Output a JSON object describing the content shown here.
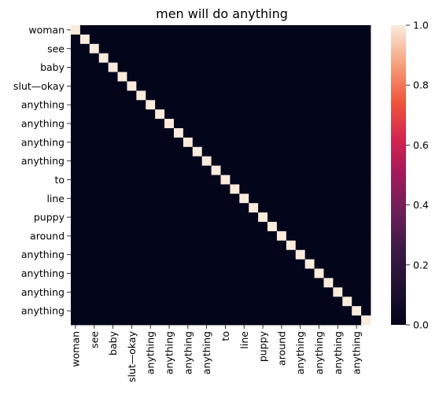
{
  "chart_data": {
    "type": "heatmap",
    "title": "men will do anything",
    "xlabel": "",
    "ylabel": "",
    "tokens": [
      "woman",
      "@",
      "see",
      "@",
      "baby",
      "@",
      "slut—okay",
      "@",
      "anything",
      "@",
      "anything",
      "@",
      "anything",
      "@",
      "anything",
      "@",
      "to",
      "@",
      "line",
      "@",
      "puppy",
      "@",
      "around",
      "@",
      "anything",
      "@",
      "anything",
      "@",
      "anything",
      "@",
      "anything",
      "@"
    ],
    "x_tick_labels": [
      "woman",
      "see",
      "baby",
      "slut—okay",
      "anything",
      "anything",
      "anything",
      "anything",
      "to",
      "line",
      "puppy",
      "around",
      "anything",
      "anything",
      "anything",
      "anything"
    ],
    "y_tick_labels": [
      "woman",
      "see",
      "baby",
      "slut—okay",
      "anything",
      "anything",
      "anything",
      "anything",
      "to",
      "line",
      "puppy",
      "around",
      "anything",
      "anything",
      "anything",
      "anything"
    ],
    "colorbar": {
      "colormap": "rocket",
      "vmin": 0.0,
      "vmax": 1.0,
      "ticks": [
        "0.0",
        "0.2",
        "0.4",
        "0.6",
        "0.8",
        "1.0"
      ]
    },
    "matrix": [
      [
        1,
        0,
        0,
        0,
        0,
        0,
        0,
        0,
        0,
        0,
        0,
        0,
        0,
        0,
        0,
        0,
        0,
        0,
        0,
        0,
        0,
        0,
        0,
        0,
        0,
        0,
        0,
        0,
        0,
        0,
        0,
        0
      ],
      [
        0,
        1,
        0,
        0,
        0,
        0,
        0,
        0,
        0,
        0,
        0,
        0,
        0,
        0,
        0,
        0,
        0,
        0,
        0,
        0,
        0,
        0,
        0,
        0,
        0,
        0,
        0,
        0,
        0,
        0,
        0,
        0
      ],
      [
        0,
        0,
        1,
        0,
        0,
        0,
        0,
        0,
        0,
        0,
        0,
        0,
        0,
        0,
        0,
        0,
        0,
        0,
        0,
        0,
        0,
        0,
        0,
        0,
        0,
        0,
        0,
        0,
        0,
        0,
        0,
        0
      ],
      [
        0,
        0,
        0,
        1,
        0,
        0,
        0,
        0,
        0,
        0,
        0,
        0,
        0,
        0,
        0,
        0,
        0,
        0,
        0,
        0,
        0,
        0,
        0,
        0,
        0,
        0,
        0,
        0,
        0,
        0,
        0,
        0
      ],
      [
        0,
        0,
        0,
        0,
        1,
        0,
        0,
        0,
        0,
        0,
        0,
        0,
        0,
        0,
        0,
        0,
        0,
        0,
        0,
        0,
        0,
        0,
        0,
        0,
        0,
        0,
        0,
        0,
        0,
        0,
        0,
        0
      ],
      [
        0,
        0,
        0,
        0,
        0,
        1,
        0,
        0,
        0,
        0,
        0,
        0,
        0,
        0,
        0,
        0,
        0,
        0,
        0,
        0,
        0,
        0,
        0,
        0,
        0,
        0,
        0,
        0,
        0,
        0,
        0,
        0
      ],
      [
        0,
        0,
        0,
        0,
        0,
        0,
        1,
        0,
        0,
        0,
        0,
        0,
        0,
        0,
        0,
        0,
        0,
        0,
        0,
        0,
        0,
        0,
        0,
        0,
        0,
        0,
        0,
        0,
        0,
        0,
        0,
        0
      ],
      [
        0,
        0,
        0,
        0,
        0,
        0,
        0,
        1,
        0,
        0,
        0,
        0,
        0,
        0,
        0,
        0,
        0,
        0,
        0,
        0,
        0,
        0,
        0,
        0,
        0,
        0,
        0,
        0,
        0,
        0,
        0,
        0
      ],
      [
        0,
        0,
        0,
        0,
        0,
        0,
        0,
        0,
        1,
        0,
        0,
        0,
        0,
        0,
        0,
        0,
        0,
        0,
        0,
        0,
        0,
        0,
        0,
        0,
        0,
        0,
        0,
        0,
        0,
        0,
        0,
        0
      ],
      [
        0,
        0,
        0,
        0,
        0,
        0,
        0,
        0,
        0,
        1,
        0,
        0,
        0,
        0,
        0,
        0,
        0,
        0,
        0,
        0,
        0,
        0,
        0,
        0,
        0,
        0,
        0,
        0,
        0,
        0,
        0,
        0
      ],
      [
        0,
        0,
        0,
        0,
        0,
        0,
        0,
        0,
        0,
        0,
        1,
        0,
        0,
        0,
        0,
        0,
        0,
        0,
        0,
        0,
        0,
        0,
        0,
        0,
        0,
        0,
        0,
        0,
        0,
        0,
        0,
        0
      ],
      [
        0,
        0,
        0,
        0,
        0,
        0,
        0,
        0,
        0,
        0,
        0,
        1,
        0,
        0,
        0,
        0,
        0,
        0,
        0,
        0,
        0,
        0,
        0,
        0,
        0,
        0,
        0,
        0,
        0,
        0,
        0,
        0
      ],
      [
        0,
        0,
        0,
        0,
        0,
        0,
        0,
        0,
        0,
        0,
        0,
        0,
        1,
        0,
        0,
        0,
        0,
        0,
        0,
        0,
        0,
        0,
        0,
        0,
        0,
        0,
        0,
        0,
        0,
        0,
        0,
        0
      ],
      [
        0,
        0,
        0,
        0,
        0,
        0,
        0,
        0,
        0,
        0,
        0,
        0,
        0,
        1,
        0,
        0,
        0,
        0,
        0,
        0,
        0,
        0,
        0,
        0,
        0,
        0,
        0,
        0,
        0,
        0,
        0,
        0
      ],
      [
        0,
        0,
        0,
        0,
        0,
        0,
        0,
        0,
        0,
        0,
        0,
        0,
        0,
        0,
        1,
        0,
        0,
        0,
        0,
        0,
        0,
        0,
        0,
        0,
        0,
        0,
        0,
        0,
        0,
        0,
        0,
        0
      ],
      [
        0,
        0,
        0,
        0,
        0,
        0,
        0,
        0,
        0,
        0,
        0,
        0,
        0,
        0,
        0,
        1,
        0,
        0,
        0,
        0,
        0,
        0,
        0,
        0,
        0,
        0,
        0,
        0,
        0,
        0,
        0,
        0
      ],
      [
        0,
        0,
        0,
        0,
        0,
        0,
        0,
        0,
        0,
        0,
        0,
        0,
        0,
        0,
        0,
        0,
        1,
        0,
        0,
        0,
        0,
        0,
        0,
        0,
        0,
        0,
        0,
        0,
        0,
        0,
        0,
        0
      ],
      [
        0,
        0,
        0,
        0,
        0,
        0,
        0,
        0,
        0,
        0,
        0,
        0,
        0,
        0,
        0,
        0,
        0,
        1,
        0,
        0,
        0,
        0,
        0,
        0,
        0,
        0,
        0,
        0,
        0,
        0,
        0,
        0
      ],
      [
        0,
        0,
        0,
        0,
        0,
        0,
        0,
        0,
        0,
        0,
        0,
        0,
        0,
        0,
        0,
        0,
        0,
        0,
        1,
        0,
        0,
        0,
        0,
        0,
        0,
        0,
        0,
        0,
        0,
        0,
        0,
        0
      ],
      [
        0,
        0,
        0,
        0,
        0,
        0,
        0,
        0,
        0,
        0,
        0,
        0,
        0,
        0,
        0,
        0,
        0,
        0,
        0,
        1,
        0,
        0,
        0,
        0,
        0,
        0,
        0,
        0,
        0,
        0,
        0,
        0
      ],
      [
        0,
        0,
        0,
        0,
        0,
        0,
        0,
        0,
        0,
        0,
        0,
        0,
        0,
        0,
        0,
        0,
        0,
        0,
        0,
        0,
        1,
        0,
        0,
        0,
        0,
        0,
        0,
        0,
        0,
        0,
        0,
        0
      ],
      [
        0,
        0,
        0,
        0,
        0,
        0,
        0,
        0,
        0,
        0,
        0,
        0,
        0,
        0,
        0,
        0,
        0,
        0,
        0,
        0,
        0,
        1,
        0,
        0,
        0,
        0,
        0,
        0,
        0,
        0,
        0,
        0
      ],
      [
        0,
        0,
        0,
        0,
        0,
        0,
        0,
        0,
        0,
        0,
        0,
        0,
        0,
        0,
        0,
        0,
        0,
        0,
        0,
        0,
        0,
        0,
        1,
        0,
        0,
        0,
        0,
        0,
        0,
        0,
        0,
        0
      ],
      [
        0,
        0,
        0,
        0,
        0,
        0,
        0,
        0,
        0,
        0,
        0,
        0,
        0,
        0,
        0,
        0,
        0,
        0,
        0,
        0,
        0,
        0,
        0,
        1,
        0,
        0,
        0,
        0,
        0,
        0,
        0,
        0
      ],
      [
        0,
        0,
        0,
        0,
        0,
        0,
        0,
        0,
        0,
        0,
        0,
        0,
        0,
        0,
        0,
        0,
        0,
        0,
        0,
        0,
        0,
        0,
        0,
        0,
        1,
        0,
        0,
        0,
        0,
        0,
        0,
        0
      ],
      [
        0,
        0,
        0,
        0,
        0,
        0,
        0,
        0,
        0,
        0,
        0,
        0,
        0,
        0,
        0,
        0,
        0,
        0,
        0,
        0,
        0,
        0,
        0,
        0,
        0,
        1,
        0,
        0,
        0,
        0,
        0,
        0
      ],
      [
        0,
        0,
        0,
        0,
        0,
        0,
        0,
        0,
        0,
        0,
        0,
        0,
        0,
        0,
        0,
        0,
        0,
        0,
        0,
        0,
        0,
        0,
        0,
        0,
        0,
        0,
        1,
        0,
        0,
        0,
        0,
        0
      ],
      [
        0,
        0,
        0,
        0,
        0,
        0,
        0,
        0,
        0,
        0,
        0,
        0,
        0,
        0,
        0,
        0,
        0,
        0,
        0,
        0,
        0,
        0,
        0,
        0,
        0,
        0,
        0,
        1,
        0,
        0,
        0,
        0
      ],
      [
        0,
        0,
        0,
        0,
        0,
        0,
        0,
        0,
        0,
        0,
        0,
        0,
        0,
        0,
        0,
        0,
        0,
        0,
        0,
        0,
        0,
        0,
        0,
        0,
        0,
        0,
        0,
        0,
        1,
        0,
        0,
        0
      ],
      [
        0,
        0,
        0,
        0,
        0,
        0,
        0,
        0,
        0,
        0,
        0,
        0,
        0,
        0,
        0,
        0,
        0,
        0,
        0,
        0,
        0,
        0,
        0,
        0,
        0,
        0,
        0,
        0,
        0,
        1,
        0,
        0
      ],
      [
        0,
        0,
        0,
        0,
        0,
        0,
        0,
        0,
        0,
        0,
        0,
        0,
        0,
        0,
        0,
        0,
        0,
        0,
        0,
        0,
        0,
        0,
        0,
        0,
        0,
        0,
        0,
        0,
        0,
        0,
        1,
        0
      ],
      [
        0,
        0,
        0,
        0,
        0,
        0,
        0,
        0,
        0,
        0,
        0,
        0,
        0,
        0,
        0,
        0,
        0,
        0,
        0,
        0,
        0,
        0,
        0,
        0,
        0,
        0,
        0,
        0,
        0,
        0,
        0,
        1
      ]
    ]
  }
}
